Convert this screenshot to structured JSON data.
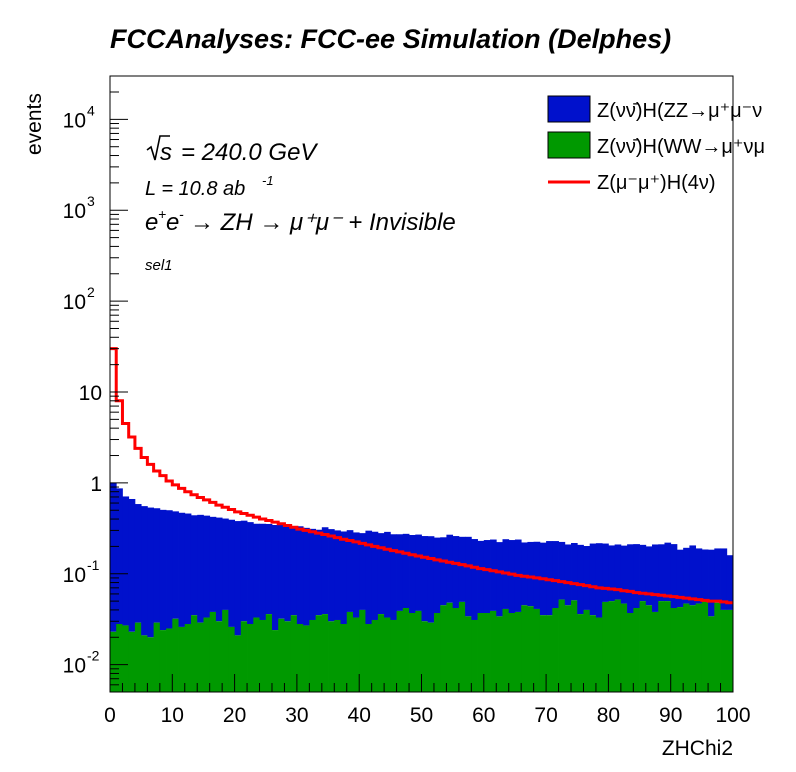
{
  "chart_data": {
    "type": "histogram",
    "title": "FCCAnalyses: FCC-ee Simulation (Delphes)",
    "xlabel": "ZHChi2",
    "ylabel": "events",
    "xlim": [
      0,
      100
    ],
    "ylim": [
      0.005,
      30000
    ],
    "log_y": true,
    "bins": 100,
    "x_ticks": [
      "0",
      "10",
      "20",
      "30",
      "40",
      "50",
      "60",
      "70",
      "80",
      "90",
      "100"
    ],
    "y_ticks": [
      {
        "base": "10",
        "exp": "-2",
        "value": 0.01
      },
      {
        "base": "10",
        "exp": "-1",
        "value": 0.1
      },
      {
        "base": "1",
        "exp": "",
        "value": 1
      },
      {
        "base": "10",
        "exp": "",
        "value": 10
      },
      {
        "base": "10",
        "exp": "2",
        "value": 100
      },
      {
        "base": "10",
        "exp": "3",
        "value": 1000
      },
      {
        "base": "10",
        "exp": "4",
        "value": 10000
      }
    ],
    "annotations": {
      "sqrt_s": "= 240.0 GeV",
      "lumi_prefix": "L = 10.8 ab",
      "lumi_exp": "-1",
      "process_left": "e",
      "process_rest": "→ ZH → μ⁺μ⁻ + Invisible",
      "selection": "sel1"
    },
    "stacked_series": [
      {
        "name": "Z(νν̄)H(WW→μ⁺νμ⁻ν̄)",
        "legend_label": "Z(νν̄)H(WW→μ⁺νμ",
        "color": "#009900",
        "values": [
          0.023,
          0.028,
          0.027,
          0.023,
          0.029,
          0.021,
          0.02,
          0.029,
          0.024,
          0.025,
          0.032,
          0.026,
          0.028,
          0.035,
          0.029,
          0.033,
          0.038,
          0.03,
          0.04,
          0.026,
          0.021,
          0.03,
          0.028,
          0.033,
          0.031,
          0.036,
          0.024,
          0.032,
          0.03,
          0.035,
          0.028,
          0.027,
          0.031,
          0.035,
          0.036,
          0.03,
          0.031,
          0.028,
          0.038,
          0.033,
          0.04,
          0.028,
          0.031,
          0.036,
          0.033,
          0.031,
          0.039,
          0.042,
          0.037,
          0.039,
          0.03,
          0.029,
          0.037,
          0.045,
          0.048,
          0.042,
          0.049,
          0.034,
          0.031,
          0.037,
          0.037,
          0.039,
          0.034,
          0.041,
          0.037,
          0.038,
          0.045,
          0.044,
          0.041,
          0.035,
          0.035,
          0.042,
          0.052,
          0.045,
          0.051,
          0.036,
          0.04,
          0.035,
          0.033,
          0.049,
          0.05,
          0.052,
          0.047,
          0.037,
          0.042,
          0.05,
          0.045,
          0.038,
          0.05,
          0.05,
          0.042,
          0.043,
          0.047,
          0.045,
          0.047,
          0.05,
          0.034,
          0.048,
          0.04,
          0.04
        ]
      },
      {
        "name": "Z(νν̄)H(ZZ→μ⁺μ⁻νν̄)",
        "legend_label": "Z(νν̄)H(ZZ→μ⁺μ⁻ν",
        "color": "#0011cc",
        "values": [
          0.977,
          0.842,
          0.682,
          0.642,
          0.556,
          0.534,
          0.515,
          0.497,
          0.481,
          0.475,
          0.454,
          0.443,
          0.432,
          0.405,
          0.416,
          0.403,
          0.385,
          0.385,
          0.365,
          0.367,
          0.359,
          0.354,
          0.342,
          0.322,
          0.324,
          0.317,
          0.32,
          0.312,
          0.303,
          0.295,
          0.305,
          0.293,
          0.281,
          0.27,
          0.289,
          0.28,
          0.269,
          0.264,
          0.264,
          0.252,
          0.24,
          0.27,
          0.259,
          0.244,
          0.256,
          0.241,
          0.233,
          0.233,
          0.23,
          0.231,
          0.23,
          0.23,
          0.213,
          0.207,
          0.221,
          0.218,
          0.206,
          0.221,
          0.21,
          0.193,
          0.198,
          0.199,
          0.189,
          0.199,
          0.198,
          0.2,
          0.176,
          0.18,
          0.184,
          0.185,
          0.194,
          0.187,
          0.172,
          0.165,
          0.167,
          0.172,
          0.162,
          0.18,
          0.184,
          0.166,
          0.155,
          0.158,
          0.157,
          0.174,
          0.17,
          0.158,
          0.155,
          0.172,
          0.161,
          0.17,
          0.17,
          0.141,
          0.146,
          0.16,
          0.143,
          0.135,
          0.15,
          0.142,
          0.15,
          0.12
        ]
      }
    ],
    "overlay_series": {
      "name": "Z(μ⁻μ⁺)H(4ν)",
      "legend_label": "Z(μ⁻μ⁺)H(4ν)",
      "color": "#ff0000",
      "values": [
        30,
        8,
        4.5,
        3.2,
        2.4,
        1.9,
        1.6,
        1.35,
        1.2,
        1.05,
        0.95,
        0.87,
        0.8,
        0.74,
        0.69,
        0.65,
        0.61,
        0.57,
        0.54,
        0.51,
        0.48,
        0.46,
        0.44,
        0.42,
        0.4,
        0.385,
        0.37,
        0.355,
        0.34,
        0.325,
        0.31,
        0.3,
        0.29,
        0.28,
        0.27,
        0.26,
        0.25,
        0.24,
        0.232,
        0.224,
        0.216,
        0.208,
        0.2,
        0.193,
        0.186,
        0.18,
        0.174,
        0.168,
        0.162,
        0.157,
        0.152,
        0.147,
        0.142,
        0.138,
        0.134,
        0.13,
        0.126,
        0.122,
        0.118,
        0.114,
        0.111,
        0.108,
        0.105,
        0.102,
        0.099,
        0.096,
        0.094,
        0.092,
        0.09,
        0.088,
        0.086,
        0.084,
        0.082,
        0.08,
        0.078,
        0.076,
        0.074,
        0.072,
        0.07,
        0.069,
        0.068,
        0.067,
        0.065,
        0.064,
        0.062,
        0.061,
        0.06,
        0.059,
        0.058,
        0.057,
        0.056,
        0.055,
        0.054,
        0.053,
        0.052,
        0.051,
        0.05,
        0.05,
        0.049,
        0.048
      ]
    }
  }
}
